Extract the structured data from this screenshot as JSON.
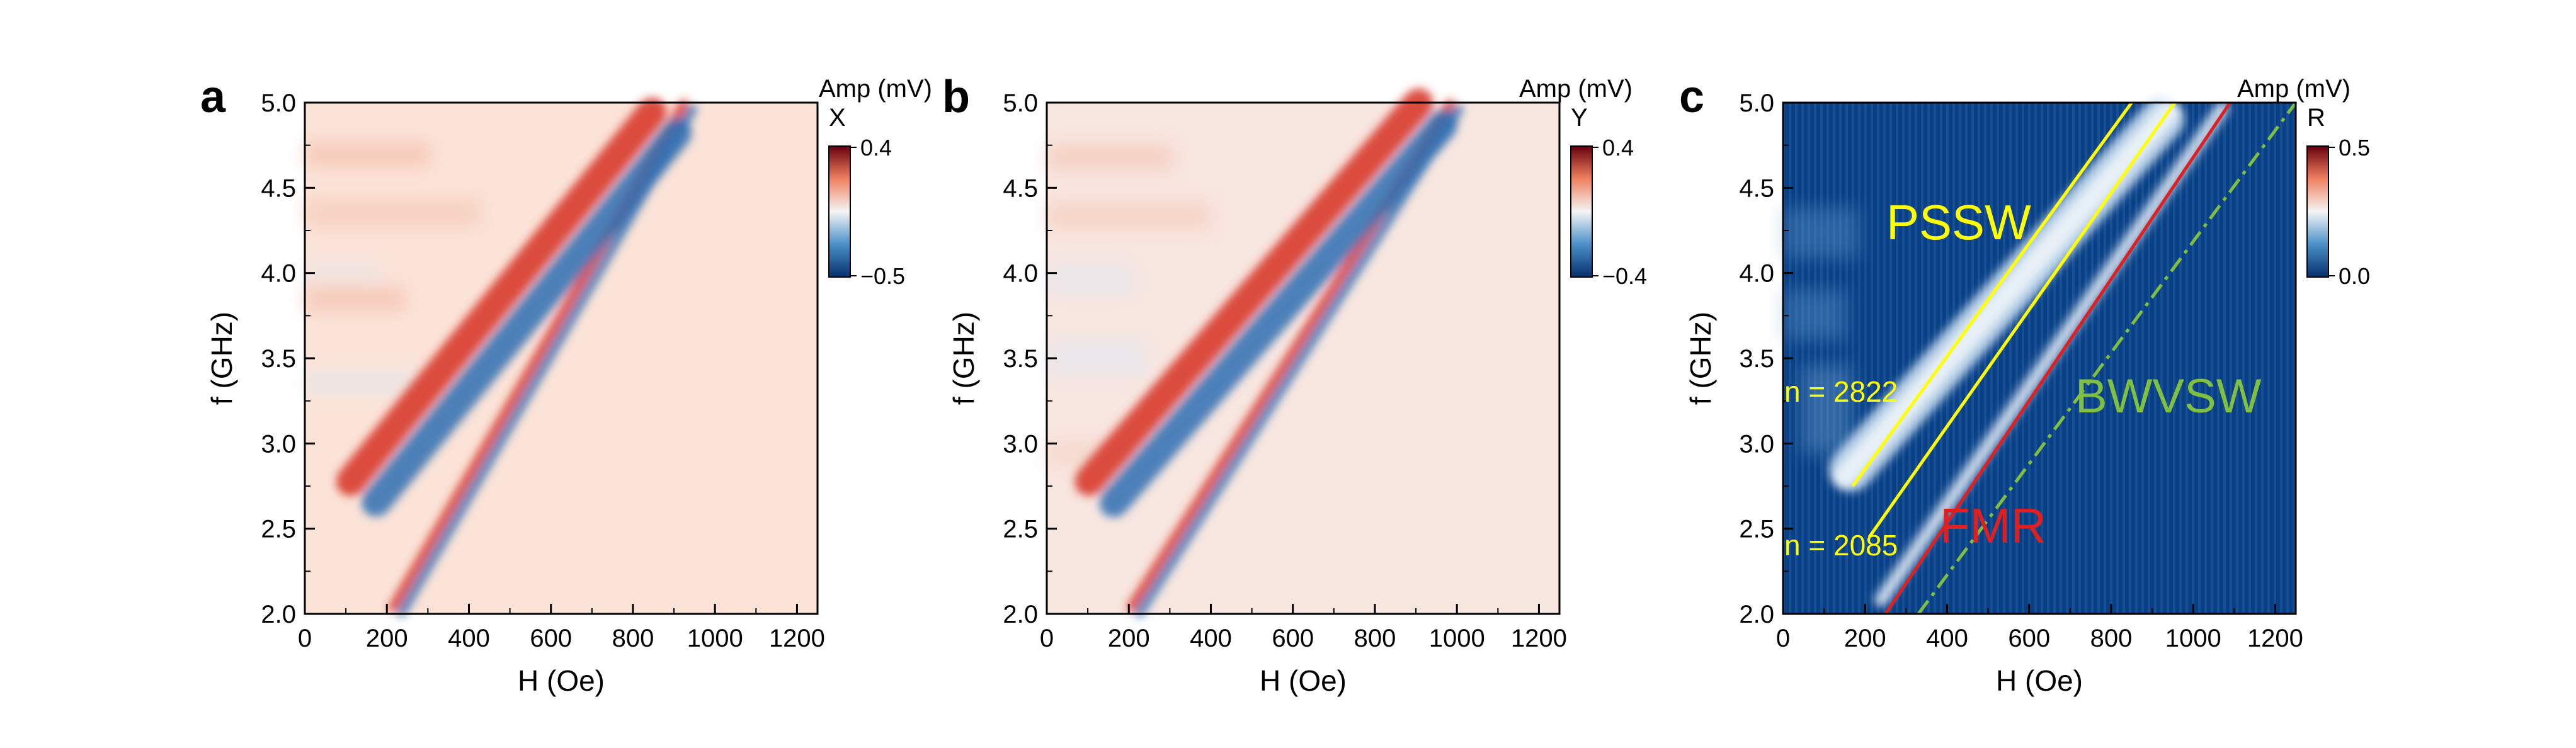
{
  "figure": {
    "shared_x_ticks": [
      "0",
      "200",
      "400",
      "600",
      "800",
      "1000",
      "1200"
    ],
    "shared_y_ticks": [
      "2.0",
      "2.5",
      "3.0",
      "3.5",
      "4.0",
      "4.5",
      "5.0"
    ]
  },
  "chart_data": [
    {
      "type": "heatmap",
      "panel": "a",
      "xlabel": "H (Oe)",
      "ylabel": "f (GHz)",
      "xlim": [
        0,
        1250
      ],
      "ylim": [
        2.0,
        5.0
      ],
      "colorbar": {
        "title": "Amp (mV)",
        "channel": "X",
        "min": -0.5,
        "max": 0.4,
        "tick_labels": [
          "0.4",
          "−0.5"
        ],
        "colormap": "RdBu_r"
      },
      "bands": [
        {
          "name": "fmr-band",
          "x_range": [
            200,
            940
          ],
          "f_at": [
            [
              220,
              2.0
            ],
            [
              940,
              5.0
            ]
          ]
        },
        {
          "name": "pssw-band",
          "x_range": [
            120,
            900
          ],
          "f_at": [
            [
              120,
              2.65
            ],
            [
              900,
              4.95
            ]
          ]
        }
      ]
    },
    {
      "type": "heatmap",
      "panel": "b",
      "xlabel": "H (Oe)",
      "ylabel": "f (GHz)",
      "xlim": [
        0,
        1250
      ],
      "ylim": [
        2.0,
        5.0
      ],
      "colorbar": {
        "title": "Amp (mV)",
        "channel": "Y",
        "min": -0.4,
        "max": 0.4,
        "tick_labels": [
          "0.4",
          "−0.4"
        ],
        "colormap": "RdBu_r"
      },
      "bands": [
        {
          "name": "fmr-band",
          "x_range": [
            210,
            1000
          ],
          "f_at": [
            [
              210,
              2.0
            ],
            [
              1000,
              5.0
            ]
          ]
        },
        {
          "name": "pssw-band",
          "x_range": [
            110,
            960
          ],
          "f_at": [
            [
              110,
              2.65
            ],
            [
              960,
              5.0
            ]
          ]
        }
      ]
    },
    {
      "type": "heatmap",
      "panel": "c",
      "xlabel": "H (Oe)",
      "ylabel": "f (GHz)",
      "xlim": [
        0,
        1250
      ],
      "ylim": [
        2.0,
        5.0
      ],
      "colorbar": {
        "title": "Amp (mV)",
        "channel": "R",
        "min": 0.0,
        "max": 0.5,
        "tick_labels": [
          "0.5",
          "0.0"
        ],
        "colormap": "RdBu_r"
      },
      "annotations": [
        {
          "text": "PSSW",
          "color": "#ffff00"
        },
        {
          "text": "BWVSW",
          "color": "#80c040"
        },
        {
          "text": "FMR",
          "color": "#e02020"
        },
        {
          "text": "n = 2822",
          "color": "#ffff00"
        },
        {
          "text": "n = 2085",
          "color": "#ffff00"
        }
      ],
      "fit_lines": [
        {
          "name": "pssw-n2822",
          "color": "#ffff00",
          "style": "solid",
          "points": [
            [
              170,
              2.75
            ],
            [
              850,
              5.0
            ]
          ]
        },
        {
          "name": "pssw-n2085",
          "color": "#ffff00",
          "style": "solid",
          "points": [
            [
              210,
              2.45
            ],
            [
              955,
              5.0
            ]
          ]
        },
        {
          "name": "fmr",
          "color": "#e02020",
          "style": "solid",
          "points": [
            [
              250,
              2.0
            ],
            [
              1090,
              5.0
            ]
          ]
        },
        {
          "name": "bwvsw",
          "color": "#80c040",
          "style": "dashdot",
          "points": [
            [
              330,
              2.0
            ],
            [
              1250,
              5.0
            ]
          ]
        }
      ],
      "bands": [
        {
          "name": "pssw-band",
          "x_range": [
            130,
            960
          ],
          "f_at": [
            [
              130,
              2.75
            ],
            [
              960,
              5.0
            ]
          ]
        },
        {
          "name": "fmr-band",
          "x_range": [
            230,
            1080
          ],
          "f_at": [
            [
              230,
              2.05
            ],
            [
              1080,
              5.0
            ]
          ]
        }
      ]
    }
  ]
}
